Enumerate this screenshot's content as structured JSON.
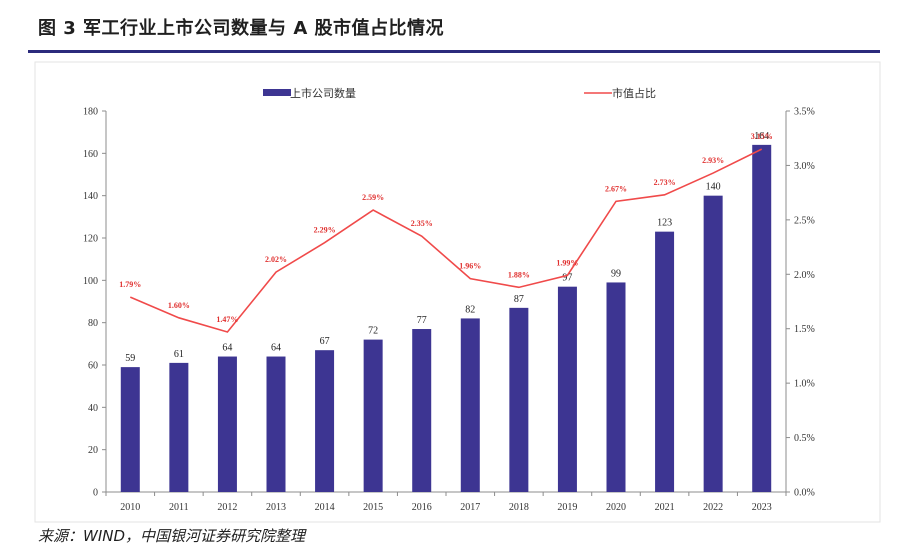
{
  "title": "图 3  军工行业上市公司数量与 A 股市值占比情况",
  "source": "来源：WIND，中国银河证券研究院整理",
  "colors": {
    "bar": "#3d3592",
    "line": "#f04a4a",
    "rule": "#2b2a7c"
  },
  "chart_data": {
    "type": "bar+line",
    "categories": [
      "2010",
      "2011",
      "2012",
      "2013",
      "2014",
      "2015",
      "2016",
      "2017",
      "2018",
      "2019",
      "2020",
      "2021",
      "2022",
      "2023"
    ],
    "series": [
      {
        "name": "上市公司数量",
        "type": "bar",
        "axis": "left",
        "values": [
          59,
          61,
          64,
          64,
          67,
          72,
          77,
          82,
          87,
          97,
          99,
          123,
          140,
          164
        ],
        "labels": [
          "59",
          "61",
          "64",
          "64",
          "67",
          "72",
          "77",
          "82",
          "87",
          "97",
          "99",
          "123",
          "140",
          "164"
        ]
      },
      {
        "name": "市值占比",
        "type": "line",
        "axis": "right",
        "values": [
          1.79,
          1.6,
          1.47,
          2.02,
          2.29,
          2.59,
          2.35,
          1.96,
          1.88,
          1.99,
          2.67,
          2.73,
          2.93,
          3.15
        ],
        "labels": [
          "1.79%",
          "1.60%",
          "1.47%",
          "2.02%",
          "2.29%",
          "2.59%",
          "2.35%",
          "1.96%",
          "1.88%",
          "1.99%",
          "2.67%",
          "2.73%",
          "2.93%",
          "3.15%"
        ]
      }
    ],
    "y_left": {
      "min": 0,
      "max": 180,
      "ticks": [
        "0",
        "20",
        "40",
        "60",
        "80",
        "100",
        "120",
        "140",
        "160",
        "180"
      ]
    },
    "y_right": {
      "min": 0,
      "max": 3.5,
      "ticks": [
        "0.0%",
        "0.5%",
        "1.0%",
        "1.5%",
        "2.0%",
        "2.5%",
        "3.0%",
        "3.5%"
      ]
    },
    "legend": [
      "上市公司数量",
      "市值占比"
    ],
    "legend_position": "top"
  }
}
